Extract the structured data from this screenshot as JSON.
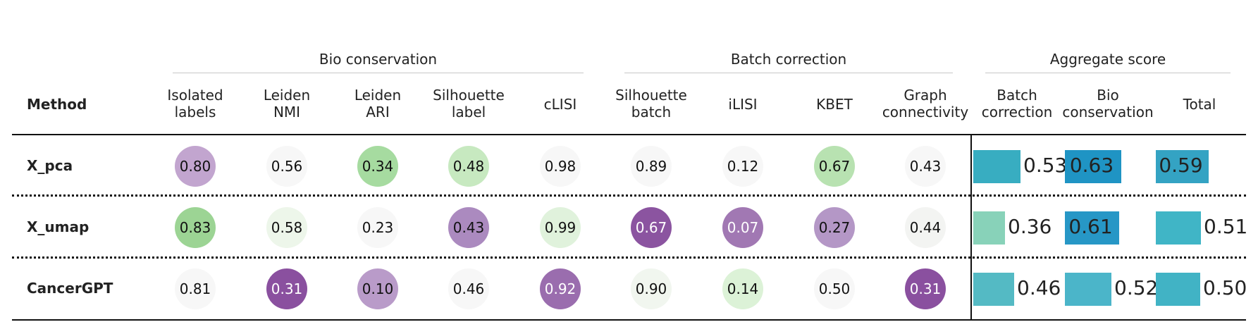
{
  "chart_data": {
    "type": "table",
    "method_header": "Method",
    "groups": [
      {
        "key": "bio",
        "label": "Bio conservation"
      },
      {
        "key": "batch",
        "label": "Batch correction"
      },
      {
        "key": "agg",
        "label": "Aggregate score"
      }
    ],
    "metrics": [
      {
        "key": "isolated_labels",
        "label": "Isolated\nlabels",
        "group": "bio",
        "kind": "circle"
      },
      {
        "key": "leiden_nmi",
        "label": "Leiden\nNMI",
        "group": "bio",
        "kind": "circle"
      },
      {
        "key": "leiden_ari",
        "label": "Leiden\nARI",
        "group": "bio",
        "kind": "circle"
      },
      {
        "key": "silhouette_label",
        "label": "Silhouette\nlabel",
        "group": "bio",
        "kind": "circle"
      },
      {
        "key": "clisi",
        "label": "cLISI",
        "group": "bio",
        "kind": "circle"
      },
      {
        "key": "silhouette_batch",
        "label": "Silhouette\nbatch",
        "group": "batch",
        "kind": "circle"
      },
      {
        "key": "ilisi",
        "label": "iLISI",
        "group": "batch",
        "kind": "circle"
      },
      {
        "key": "kbet",
        "label": "KBET",
        "group": "batch",
        "kind": "circle"
      },
      {
        "key": "graph_connectivity",
        "label": "Graph\nconnectivity",
        "group": "batch",
        "kind": "circle"
      },
      {
        "key": "agg_batch",
        "label": "Batch\ncorrection",
        "group": "agg",
        "kind": "bar"
      },
      {
        "key": "agg_bio",
        "label": "Bio\nconservation",
        "group": "agg",
        "kind": "bar"
      },
      {
        "key": "agg_total",
        "label": "Total",
        "group": "agg",
        "kind": "bar"
      }
    ],
    "rows": [
      {
        "method": "X_pca",
        "values": [
          "0.80",
          "0.56",
          "0.34",
          "0.48",
          "0.98",
          "0.89",
          "0.12",
          "0.67",
          "0.43",
          "0.53",
          "0.63",
          "0.59"
        ],
        "colors": [
          "#c2a5cf",
          "#f7f7f7",
          "#a6dba0",
          "#c7e9c0",
          "#f7f7f7",
          "#f7f7f7",
          "#f7f7f7",
          "#b8e2b1",
          "#f7f7f7",
          "#38adc1",
          "#1f94c4",
          "#34a3c3"
        ]
      },
      {
        "method": "X_umap",
        "values": [
          "0.83",
          "0.58",
          "0.23",
          "0.43",
          "0.99",
          "0.67",
          "0.07",
          "0.27",
          "0.44",
          "0.36",
          "0.61",
          "0.51"
        ],
        "colors": [
          "#9cd494",
          "#edf6ea",
          "#f7f7f7",
          "#ab8abf",
          "#e0f2dc",
          "#8b54a0",
          "#a178b3",
          "#b497c6",
          "#f3f4f2",
          "#88d2b9",
          "#2797c6",
          "#40b5c6"
        ]
      },
      {
        "method": "CancerGPT",
        "values": [
          "0.81",
          "0.31",
          "0.10",
          "0.46",
          "0.92",
          "0.90",
          "0.14",
          "0.50",
          "0.31"
        ],
        "colors": [
          "#f7f7f7",
          "#8a509f",
          "#b99bc9",
          "#f7f7f7",
          "#9a6dae",
          "#f1f6ef",
          "#dcf2d7",
          "#f7f7f7",
          "#8a509f"
        ],
        "extra": [
          "0.46",
          "0.52",
          "0.50"
        ],
        "extra_colors": [
          "#54bac4",
          "#4bb5c9",
          "#41b3c5"
        ]
      }
    ]
  }
}
